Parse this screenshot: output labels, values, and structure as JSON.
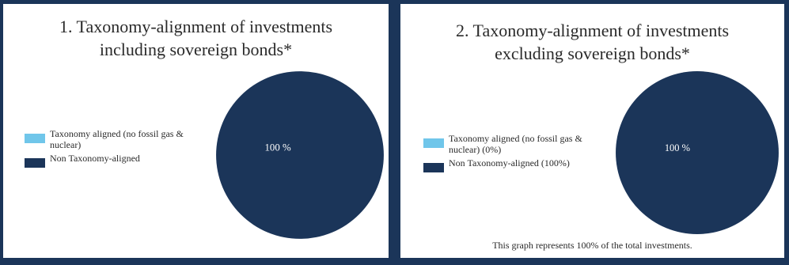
{
  "chart_data": [
    {
      "type": "pie",
      "title": [
        "1. Taxonomy-alignment of investments",
        "including sovereign bonds*"
      ],
      "series": [
        {
          "name": "Taxonomy aligned (no fossil gas & nuclear)",
          "value": 0,
          "color": "#70c6ea"
        },
        {
          "name": "Non Taxonomy-aligned",
          "value": 100,
          "color": "#1b3559"
        }
      ],
      "data_labels": [
        "",
        "100 %"
      ],
      "legend_position": "left"
    },
    {
      "type": "pie",
      "title": [
        "2. Taxonomy-alignment of investments",
        "excluding sovereign bonds*"
      ],
      "series": [
        {
          "name": "Taxonomy aligned (no fossil gas & nuclear) (0%)",
          "value": 0,
          "color": "#70c6ea"
        },
        {
          "name": "Non Taxonomy-aligned (100%)",
          "value": 100,
          "color": "#1b3559"
        }
      ],
      "data_labels": [
        "",
        "100 %"
      ],
      "legend_position": "left",
      "footnote": "This graph represents 100% of the total investments."
    }
  ]
}
